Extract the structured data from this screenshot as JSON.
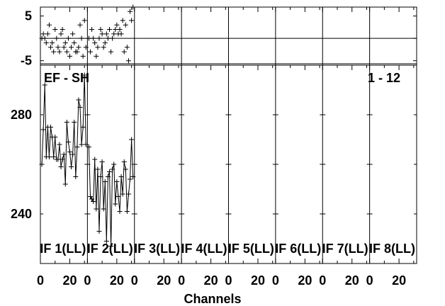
{
  "chart_data": {
    "type": "line",
    "title": "",
    "baseline_label": "EF - SH",
    "range_label": "1 - 12",
    "xlabel": "Channels",
    "panel_labels": [
      "IF 1(LL)",
      "IF 2(LL)",
      "IF 3(LL)",
      "IF 4(LL)",
      "IF 5(LL)",
      "IF 6(LL)",
      "IF 7(LL)",
      "IF 8(LL)"
    ],
    "x_ticks": [
      "0",
      "20"
    ],
    "phase_panel": {
      "ylabel": "",
      "ylim": [
        -6,
        7
      ],
      "y_ticks": [
        "5",
        "-5"
      ],
      "reference_line": 0,
      "series": [
        {
          "panel": "IF 1(LL)",
          "x": [
            1,
            2,
            3,
            4,
            5,
            6,
            7,
            8,
            9,
            10,
            11,
            12,
            13,
            14,
            15,
            16,
            17,
            18,
            19,
            20,
            21,
            22,
            23,
            24,
            25,
            26,
            27,
            28,
            29,
            30,
            31
          ],
          "y": [
            0,
            1,
            0,
            -1,
            1,
            3,
            -2,
            -1,
            -3,
            2,
            0,
            -2,
            -3,
            1,
            2,
            -2,
            -1,
            -3,
            0,
            -4,
            -2,
            1,
            -1,
            -3,
            -3,
            -2,
            3,
            0,
            -4,
            4,
            -2
          ]
        },
        {
          "panel": "IF 2(LL)",
          "x": [
            1,
            2,
            3,
            4,
            5,
            6,
            7,
            8,
            9,
            10,
            11,
            12,
            13,
            14,
            15,
            16,
            17,
            18,
            19,
            20,
            21,
            22,
            23,
            24,
            25,
            26,
            27,
            28,
            29,
            30,
            31
          ],
          "y": [
            0,
            -3,
            2,
            0,
            -1,
            -4,
            -2,
            0,
            2,
            1,
            -2,
            -1,
            1,
            0,
            2,
            -3,
            0,
            1,
            2,
            3,
            1,
            2,
            1,
            4,
            -3,
            3,
            -2,
            -5,
            6,
            4,
            7
          ]
        }
      ]
    },
    "amplitude_panel": {
      "ylabel": "",
      "ylim": [
        220,
        300
      ],
      "y_ticks": [
        "280",
        "240"
      ],
      "series": [
        {
          "panel": "IF 1(LL)",
          "x": [
            1,
            2,
            3,
            4,
            5,
            6,
            7,
            8,
            9,
            10,
            11,
            12,
            13,
            14,
            15,
            16,
            17,
            18,
            19,
            20,
            21,
            22,
            23,
            24,
            25,
            26,
            27,
            28,
            29,
            30,
            31
          ],
          "y": [
            260,
            274,
            292,
            263,
            275,
            263,
            275,
            271,
            263,
            271,
            262,
            262,
            268,
            259,
            262,
            264,
            252,
            277,
            269,
            265,
            259,
            264,
            277,
            255,
            267,
            286,
            283,
            268,
            275,
            296,
            268
          ]
        },
        {
          "panel": "IF 2(LL)",
          "x": [
            1,
            2,
            3,
            4,
            5,
            6,
            7,
            8,
            9,
            10,
            11,
            12,
            13,
            14,
            15,
            16,
            17,
            18,
            19,
            20,
            21,
            22,
            23,
            24,
            25,
            26,
            27,
            28,
            29,
            30,
            31
          ],
          "y": [
            267,
            247,
            246,
            245,
            262,
            242,
            258,
            233,
            255,
            261,
            242,
            253,
            229,
            255,
            257,
            227,
            258,
            260,
            244,
            253,
            247,
            241,
            255,
            248,
            261,
            258,
            241,
            248,
            254,
            270,
            255
          ]
        }
      ]
    }
  }
}
